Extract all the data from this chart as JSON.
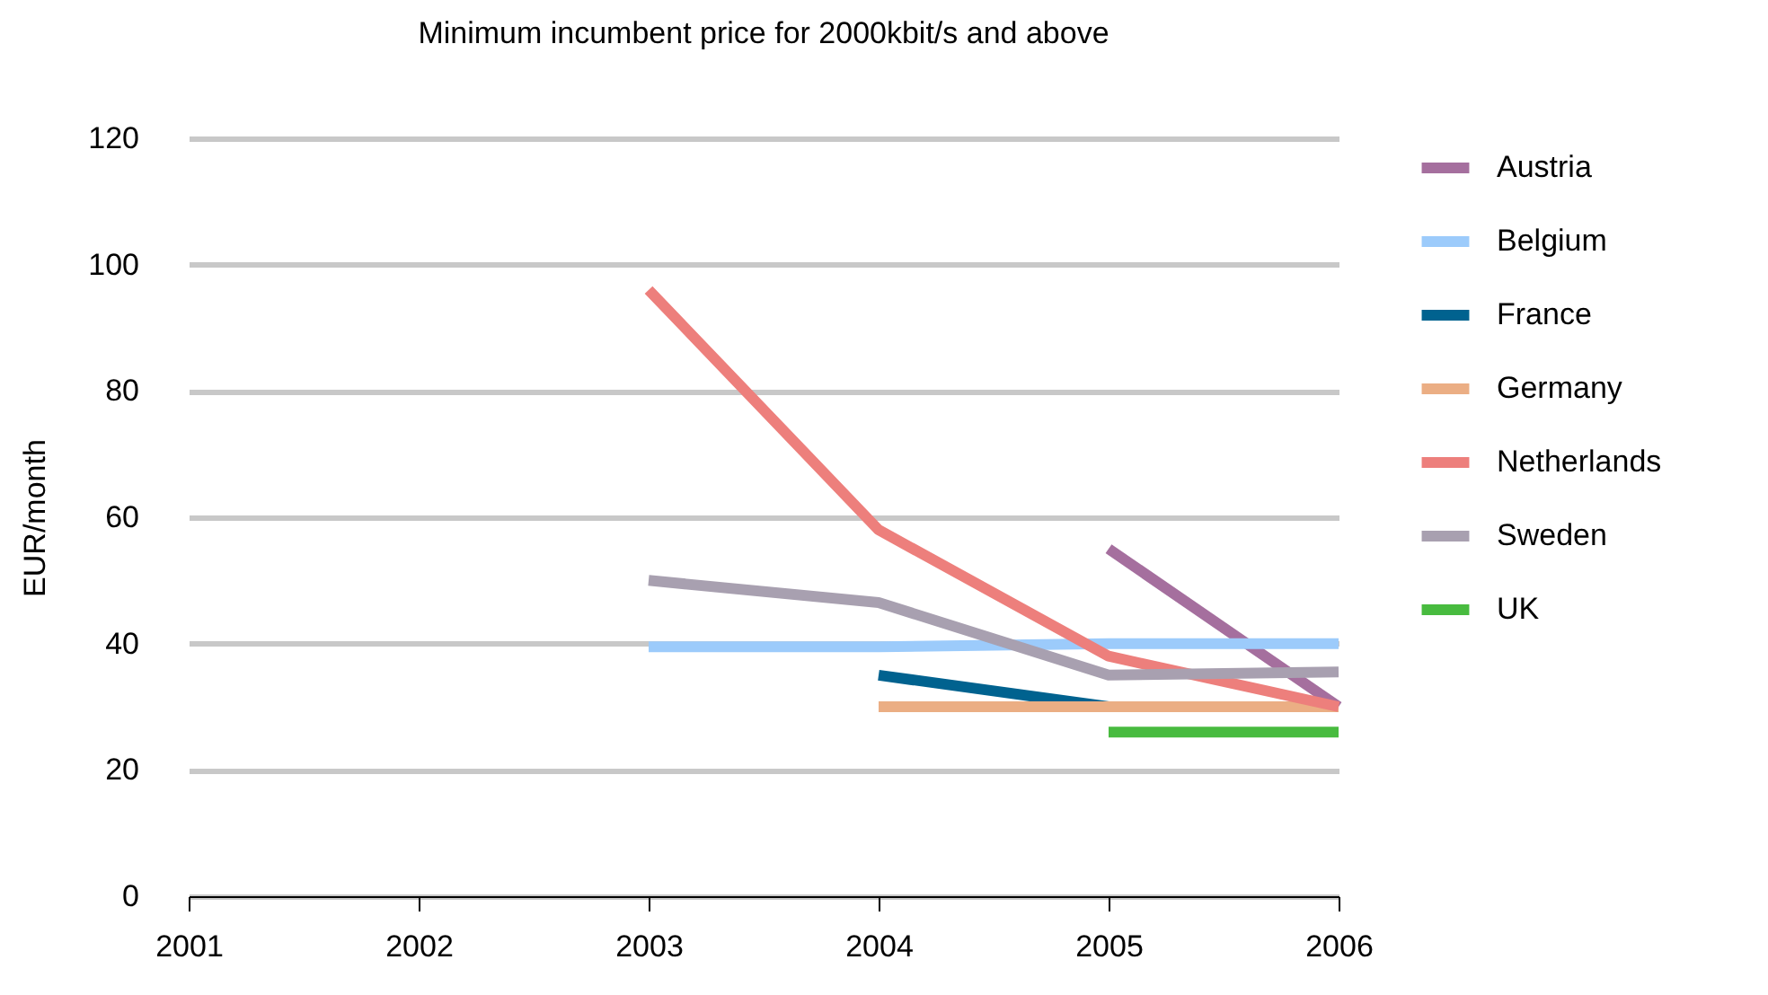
{
  "chart_data": {
    "type": "line",
    "title": "Minimum incumbent price for 2000kbit/s and above",
    "ylabel": "EUR/month",
    "categories": [
      "2001",
      "2002",
      "2003",
      "2004",
      "2005",
      "2006"
    ],
    "series": [
      {
        "name": "Austria",
        "color": "#a56f9e",
        "values": [
          null,
          null,
          null,
          null,
          55,
          30
        ]
      },
      {
        "name": "Belgium",
        "color": "#9ccbfb",
        "values": [
          null,
          null,
          39.5,
          39.5,
          40,
          40
        ]
      },
      {
        "name": "France",
        "color": "#00628f",
        "values": [
          null,
          null,
          null,
          35,
          30,
          null
        ]
      },
      {
        "name": "Germany",
        "color": "#ebae84",
        "values": [
          null,
          null,
          null,
          30,
          30,
          30
        ]
      },
      {
        "name": "Netherlands",
        "color": "#ed7f7c",
        "values": [
          null,
          null,
          96,
          58,
          38,
          30
        ]
      },
      {
        "name": "Sweden",
        "color": "#a8a0b0",
        "values": [
          null,
          null,
          50,
          46.5,
          35,
          35.5
        ]
      },
      {
        "name": "UK",
        "color": "#48bb3f",
        "values": [
          null,
          null,
          null,
          null,
          26,
          26
        ]
      }
    ],
    "ylim": [
      0,
      120
    ],
    "yticks": [
      0,
      20,
      40,
      60,
      80,
      100,
      120
    ],
    "grid": "y",
    "legend": "right"
  }
}
